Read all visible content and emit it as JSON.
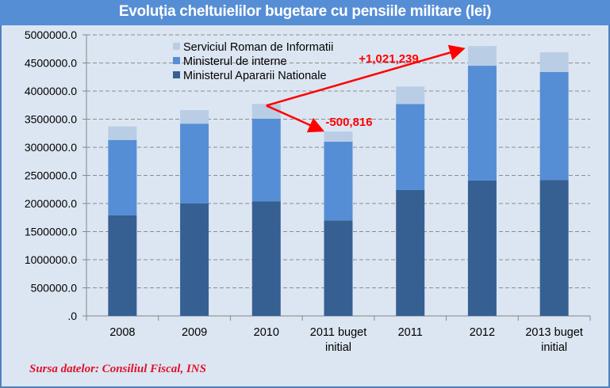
{
  "chart_data": {
    "type": "bar",
    "stacked": true,
    "title": "Evoluția cheltuielilor bugetare cu pensiile militare (lei)",
    "xlabel": "",
    "ylabel": "",
    "ylim": [
      0,
      5000000
    ],
    "yticks": [
      0,
      500000,
      1000000,
      1500000,
      2000000,
      2500000,
      3000000,
      3500000,
      4000000,
      4500000,
      5000000
    ],
    "ytick_labels": [
      ".0",
      "500000.0",
      "1000000.0",
      "1500000.0",
      "2000000.0",
      "2500000.0",
      "3000000.0",
      "3500000.0",
      "4000000.0",
      "4500000.0",
      "5000000.0"
    ],
    "categories": [
      [
        "2008"
      ],
      [
        "2009"
      ],
      [
        "2010"
      ],
      [
        "2011 buget",
        "initial"
      ],
      [
        "2011"
      ],
      [
        "2012"
      ],
      [
        "2013 buget",
        "initial"
      ]
    ],
    "grid": true,
    "legend_position": "top-left",
    "series": [
      {
        "name": "Ministerul Apararii Nationale",
        "color": "#366092",
        "values": [
          1790000,
          2000000,
          2040000,
          1700000,
          2240000,
          2410000,
          2420000
        ]
      },
      {
        "name": "Ministerul de interne",
        "color": "#558ed5",
        "values": [
          1340000,
          1420000,
          1470000,
          1400000,
          1530000,
          2040000,
          1920000
        ]
      },
      {
        "name": "Serviciul Roman de Informatii",
        "color": "#b9cde5",
        "values": [
          240000,
          240000,
          260000,
          180000,
          310000,
          350000,
          350000
        ]
      }
    ],
    "annotations": [
      {
        "text": "+1,021,239",
        "from": 2,
        "to": 5,
        "color": "#ff0000"
      },
      {
        "text": "-500,816",
        "from": 2,
        "to": 3,
        "color": "#ff0000"
      }
    ]
  },
  "source": "Sursa datelor: Consiliul Fiscal, INS"
}
